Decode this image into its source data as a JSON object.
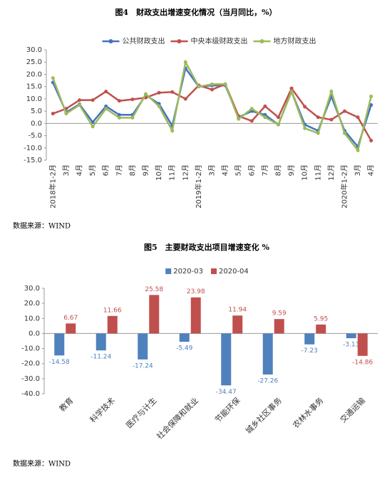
{
  "chart_data": [
    {
      "type": "line",
      "title": "图4　财政支出增速变化情况（当月同比，%）",
      "source": "数据来源：WIND",
      "categories": [
        "2018年1-2月",
        "3月",
        "4月",
        "5月",
        "6月",
        "7月",
        "8月",
        "9月",
        "10月",
        "11月",
        "12月",
        "2019年1-2月",
        "3月",
        "4月",
        "5月",
        "6月",
        "7月",
        "8月",
        "9月",
        "10月",
        "11月",
        "12月",
        "2020年1-2月",
        "3月",
        "4月"
      ],
      "series": [
        {
          "name": "公共财政支出",
          "color": "#4472c4",
          "values": [
            16.7,
            4.5,
            7.8,
            0.5,
            7.0,
            3.5,
            3.5,
            11.5,
            8.0,
            -1.0,
            22.5,
            15.0,
            15.5,
            15.5,
            2.5,
            5.0,
            3.5,
            -0.5,
            13.0,
            -0.5,
            -3.0,
            11.0,
            -3.0,
            -9.5,
            7.5
          ]
        },
        {
          "name": "中央本级财政支出",
          "color": "#c0504d",
          "values": [
            4.0,
            6.0,
            9.5,
            9.5,
            13.0,
            9.2,
            9.8,
            10.5,
            12.5,
            12.8,
            10.0,
            15.5,
            13.8,
            16.0,
            3.0,
            1.0,
            7.0,
            2.5,
            14.3,
            6.8,
            2.5,
            1.5,
            5.0,
            2.5,
            -7.0
          ]
        },
        {
          "name": "地方财政支出",
          "color": "#9bbb59",
          "values": [
            18.5,
            4.0,
            7.5,
            -1.3,
            6.0,
            2.3,
            2.3,
            12.0,
            7.0,
            -3.0,
            25.0,
            15.0,
            16.0,
            16.0,
            1.8,
            6.0,
            2.5,
            -0.5,
            13.0,
            -2.0,
            -4.0,
            13.0,
            -4.0,
            -11.0,
            11.0
          ]
        }
      ],
      "ylim": [
        -15,
        30
      ],
      "yticks": [
        {
          "value": -15,
          "label": "-15.0"
        },
        {
          "value": -10,
          "label": "-10.0"
        },
        {
          "value": -5,
          "label": "-5.0"
        },
        {
          "value": 0,
          "label": "0.0"
        },
        {
          "value": 5,
          "label": "5.0"
        },
        {
          "value": 10,
          "label": "10.0"
        },
        {
          "value": 15,
          "label": "15.0"
        },
        {
          "value": 20,
          "label": "20.0"
        },
        {
          "value": 25,
          "label": "25.0"
        },
        {
          "value": 30,
          "label": "30.0"
        }
      ],
      "legend": "top"
    },
    {
      "type": "bar",
      "title": "图5　主要财政支出项目增速变化 %",
      "source": "数据来源：WIND",
      "categories": [
        "教育",
        "科学技术",
        "医疗与计生",
        "社会保障和就业",
        "节能环保",
        "城乡社区事务",
        "农林水事务",
        "交通运输"
      ],
      "series": [
        {
          "name": "2020-03",
          "color": "#4f81bd",
          "values": [
            -14.58,
            -11.24,
            -17.24,
            -5.49,
            -34.47,
            -27.26,
            -7.23,
            -3.13
          ]
        },
        {
          "name": "2020-04",
          "color": "#c0504d",
          "values": [
            6.67,
            11.66,
            25.58,
            23.98,
            11.94,
            9.59,
            5.95,
            -14.86
          ]
        }
      ],
      "ylim": [
        -40,
        30
      ],
      "yticks": [
        {
          "value": -40,
          "label": "-40.0"
        },
        {
          "value": -30,
          "label": "-30.0"
        },
        {
          "value": -20,
          "label": "-20.0"
        },
        {
          "value": -10,
          "label": "-10.0"
        },
        {
          "value": 0,
          "label": "0.0"
        },
        {
          "value": 10,
          "label": "10.0"
        },
        {
          "value": 20,
          "label": "20.0"
        },
        {
          "value": 30,
          "label": "30.0"
        }
      ],
      "legend": "top"
    }
  ]
}
